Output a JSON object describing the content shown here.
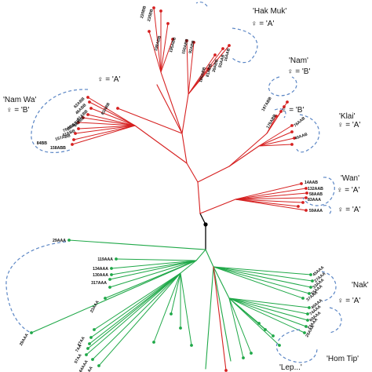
{
  "colors": {
    "red_clade": "#d62020",
    "green_clade": "#1fa848",
    "root": "#000000",
    "dash": "#5b86c5"
  },
  "groups": [
    {
      "name": "'Hak Muk'",
      "mother": "♀ = 'A'"
    },
    {
      "name": "'Nam'",
      "mother": "♀ = 'B'"
    },
    {
      "name": "",
      "mother": "♀ = 'A'"
    },
    {
      "name": "'Nam Wa'",
      "mother": "♀ = 'B'"
    },
    {
      "name": "",
      "mother": "♀ = 'B'"
    },
    {
      "name": "'Klai'",
      "mother": "♀ = 'A'"
    },
    {
      "name": "'Wan'",
      "mother": "♀ = 'A'"
    },
    {
      "name": "",
      "mother": "♀ = 'A'"
    },
    {
      "name": "'Nak'",
      "mother": "♀ = 'A'"
    },
    {
      "name": "'Hom Tip'",
      "mother": ""
    },
    {
      "name": "'Lep...'",
      "mother": ""
    }
  ],
  "leaves": [
    "220BB",
    "235BB",
    "198ABB",
    "195ABB",
    "150ABB",
    "92ABB",
    "180ABB",
    "81ABB",
    "39ABB",
    "53AAB",
    "16AAB",
    "62ABB",
    "46ABB",
    "91ABB",
    "64ABB",
    "181ABB",
    "76ABB",
    "41ABB",
    "157ABB",
    "84BB",
    "158ABB",
    "83ABB",
    "197ABB",
    "176ABB",
    "76AAB",
    "40AAB",
    "14AAB",
    "132AAB",
    "58AAB",
    "83AAA",
    "59AAA",
    "29AAA",
    "119AAA",
    "134AAA",
    "130AAA",
    "317AAA",
    "23AAA",
    "29AAA",
    "27AA",
    "7AA",
    "57AA",
    "64AAA",
    "24AAA",
    "45AAA",
    "27AAA",
    "33AAA",
    "55AAA",
    "37AAA",
    "40AAA",
    "74AAA",
    "60AAA",
    "23AAA",
    "25AAA"
  ]
}
